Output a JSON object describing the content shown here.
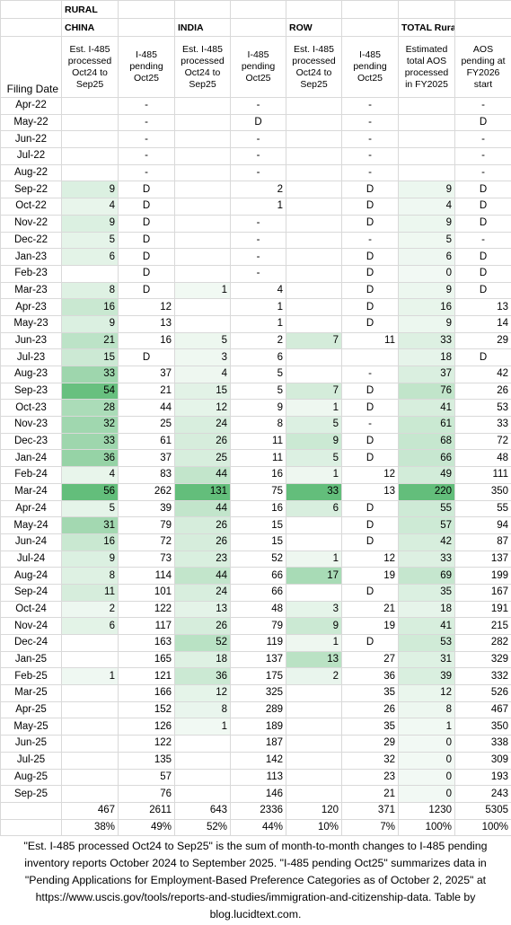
{
  "title": "RURAL",
  "groups": [
    "CHINA",
    "INDIA",
    "ROW",
    "TOTAL Rural"
  ],
  "columns": [
    "Filing Date",
    "Est. I-485 processed Oct24 to Sep25",
    "I-485 pending Oct25",
    "Est. I-485 processed Oct24 to Sep25",
    "I-485 pending Oct25",
    "Est. I-485 processed Oct24 to Sep25",
    "I-485 pending Oct25",
    "Estimated total AOS processed in FY2025",
    "AOS pending at FY2026 start"
  ],
  "rows": [
    [
      "Apr-22",
      null,
      "-",
      null,
      "-",
      null,
      "-",
      null,
      "-"
    ],
    [
      "May-22",
      null,
      "-",
      null,
      "D",
      null,
      "-",
      null,
      "D"
    ],
    [
      "Jun-22",
      null,
      "-",
      null,
      "-",
      null,
      "-",
      null,
      "-"
    ],
    [
      "Jul-22",
      null,
      "-",
      null,
      "-",
      null,
      "-",
      null,
      "-"
    ],
    [
      "Aug-22",
      null,
      "-",
      null,
      "-",
      null,
      "-",
      null,
      "-"
    ],
    [
      "Sep-22",
      9,
      "D",
      null,
      2,
      null,
      "D",
      9,
      "D"
    ],
    [
      "Oct-22",
      4,
      "D",
      null,
      1,
      null,
      "D",
      4,
      "D"
    ],
    [
      "Nov-22",
      9,
      "D",
      null,
      "-",
      null,
      "D",
      9,
      "D"
    ],
    [
      "Dec-22",
      5,
      "D",
      null,
      "-",
      null,
      "-",
      5,
      "-"
    ],
    [
      "Jan-23",
      6,
      "D",
      null,
      "-",
      null,
      "D",
      6,
      "D"
    ],
    [
      "Feb-23",
      null,
      "D",
      null,
      "-",
      null,
      "D",
      0,
      "D"
    ],
    [
      "Mar-23",
      8,
      "D",
      1,
      4,
      null,
      "D",
      9,
      "D"
    ],
    [
      "Apr-23",
      16,
      12,
      null,
      1,
      null,
      "D",
      16,
      13
    ],
    [
      "May-23",
      9,
      13,
      null,
      1,
      null,
      "D",
      9,
      14
    ],
    [
      "Jun-23",
      21,
      16,
      5,
      2,
      7,
      11,
      33,
      29
    ],
    [
      "Jul-23",
      15,
      "D",
      3,
      6,
      null,
      null,
      18,
      "D"
    ],
    [
      "Aug-23",
      33,
      37,
      4,
      5,
      null,
      "-",
      37,
      42
    ],
    [
      "Sep-23",
      54,
      21,
      15,
      5,
      7,
      "D",
      76,
      26
    ],
    [
      "Oct-23",
      28,
      44,
      12,
      9,
      1,
      "D",
      41,
      53
    ],
    [
      "Nov-23",
      32,
      25,
      24,
      8,
      5,
      "-",
      61,
      33
    ],
    [
      "Dec-23",
      33,
      61,
      26,
      11,
      9,
      "D",
      68,
      72
    ],
    [
      "Jan-24",
      36,
      37,
      25,
      11,
      5,
      "D",
      66,
      48
    ],
    [
      "Feb-24",
      4,
      83,
      44,
      16,
      1,
      12,
      49,
      111
    ],
    [
      "Mar-24",
      56,
      262,
      131,
      75,
      33,
      13,
      220,
      350
    ],
    [
      "Apr-24",
      5,
      39,
      44,
      16,
      6,
      "D",
      55,
      55
    ],
    [
      "May-24",
      31,
      79,
      26,
      15,
      null,
      "D",
      57,
      94
    ],
    [
      "Jun-24",
      16,
      72,
      26,
      15,
      null,
      "D",
      42,
      87
    ],
    [
      "Jul-24",
      9,
      73,
      23,
      52,
      1,
      12,
      33,
      137
    ],
    [
      "Aug-24",
      8,
      114,
      44,
      66,
      17,
      19,
      69,
      199
    ],
    [
      "Sep-24",
      11,
      101,
      24,
      66,
      null,
      "D",
      35,
      167
    ],
    [
      "Oct-24",
      2,
      122,
      13,
      48,
      3,
      21,
      18,
      191
    ],
    [
      "Nov-24",
      6,
      117,
      26,
      79,
      9,
      19,
      41,
      215
    ],
    [
      "Dec-24",
      null,
      163,
      52,
      119,
      1,
      "D",
      53,
      282
    ],
    [
      "Jan-25",
      null,
      165,
      18,
      137,
      13,
      27,
      31,
      329
    ],
    [
      "Feb-25",
      1,
      121,
      36,
      175,
      2,
      36,
      39,
      332
    ],
    [
      "Mar-25",
      null,
      166,
      12,
      325,
      null,
      35,
      12,
      526
    ],
    [
      "Apr-25",
      null,
      152,
      8,
      289,
      null,
      26,
      8,
      467
    ],
    [
      "May-25",
      null,
      126,
      1,
      189,
      null,
      35,
      1,
      350
    ],
    [
      "Jun-25",
      null,
      122,
      null,
      187,
      null,
      29,
      0,
      338
    ],
    [
      "Jul-25",
      null,
      135,
      null,
      142,
      null,
      32,
      0,
      309
    ],
    [
      "Aug-25",
      null,
      57,
      null,
      113,
      null,
      23,
      0,
      193
    ],
    [
      "Sep-25",
      null,
      76,
      null,
      146,
      null,
      21,
      0,
      243
    ]
  ],
  "totals": [
    467,
    2611,
    643,
    2336,
    120,
    371,
    1230,
    5305
  ],
  "percents": [
    "38%",
    "49%",
    "52%",
    "44%",
    "10%",
    "7%",
    "100%",
    "100%"
  ],
  "footnote": "\"Est. I-485 processed Oct24 to Sep25\" is the sum of month-to-month changes to I-485 pending inventory reports October 2024 to September 2025. \"I-485 pending Oct25\" summarizes data in \"Pending Applications for Employment-Based Preference Categories as of October 2, 2025\" at https://www.uscis.gov/tools/reports-and-studies/immigration-and-citizenship-data. Table by blog.lucidtext.com."
}
